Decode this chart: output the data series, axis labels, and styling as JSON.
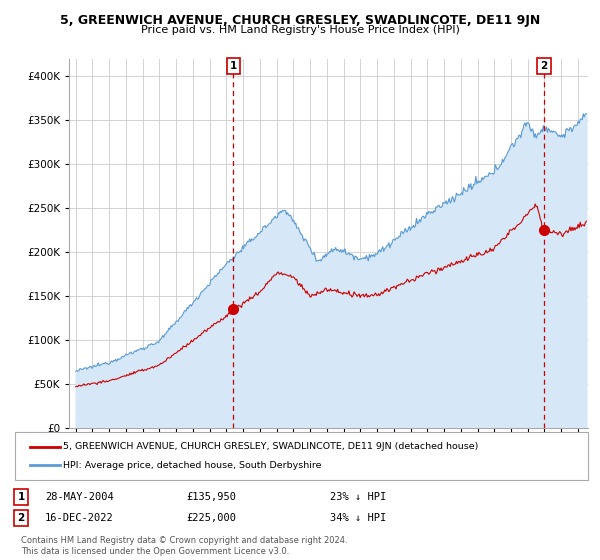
{
  "title": "5, GREENWICH AVENUE, CHURCH GRESLEY, SWADLINCOTE, DE11 9JN",
  "subtitle": "Price paid vs. HM Land Registry's House Price Index (HPI)",
  "legend_line1": "5, GREENWICH AVENUE, CHURCH GRESLEY, SWADLINCOTE, DE11 9JN (detached house)",
  "legend_line2": "HPI: Average price, detached house, South Derbyshire",
  "point1_date": "28-MAY-2004",
  "point1_price": "£135,950",
  "point1_hpi": "23% ↓ HPI",
  "point2_date": "16-DEC-2022",
  "point2_price": "£225,000",
  "point2_hpi": "34% ↓ HPI",
  "footer": "Contains HM Land Registry data © Crown copyright and database right 2024.\nThis data is licensed under the Open Government Licence v3.0.",
  "hpi_color": "#5b9bd5",
  "hpi_fill_color": "#d6e8f7",
  "price_color": "#cc0000",
  "vline_color": "#cc0000",
  "background_color": "#ffffff",
  "grid_color": "#cccccc",
  "ylim": [
    0,
    420000
  ],
  "yticks": [
    0,
    50000,
    100000,
    150000,
    200000,
    250000,
    300000,
    350000,
    400000
  ],
  "point1_x": 2004.42,
  "point1_y": 135950,
  "point2_x": 2022.96,
  "point2_y": 225000,
  "xmin": 1995,
  "xmax": 2025
}
